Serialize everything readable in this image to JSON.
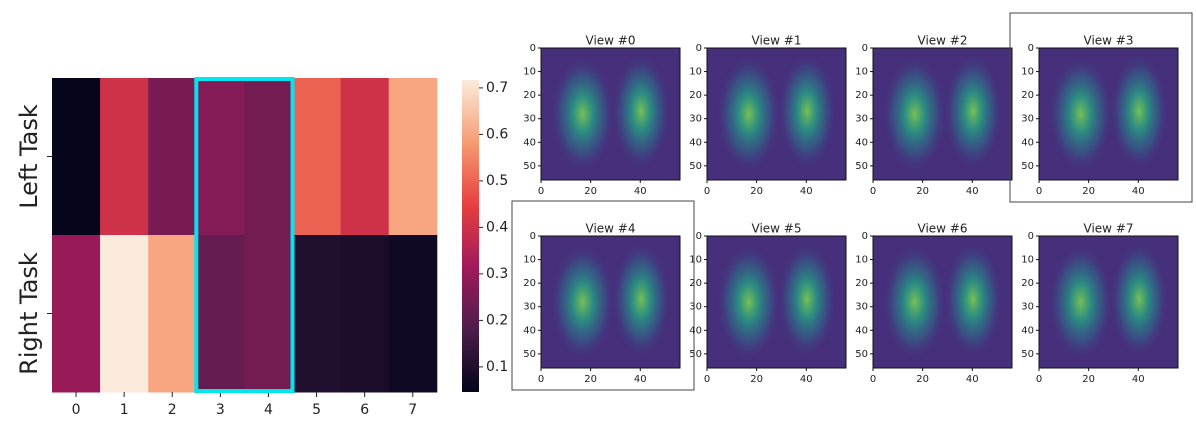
{
  "chart_data": [
    {
      "type": "heatmap",
      "x": [
        "0",
        "1",
        "2",
        "3",
        "4",
        "5",
        "6",
        "7"
      ],
      "y": [
        "Left Task",
        "Right Task"
      ],
      "values": [
        [
          0.05,
          0.4,
          0.25,
          0.27,
          0.24,
          0.5,
          0.4,
          0.6
        ],
        [
          0.3,
          0.72,
          0.6,
          0.22,
          0.24,
          0.1,
          0.09,
          0.07
        ]
      ],
      "colormap": "rocket",
      "clim": [
        0.046,
        0.717
      ],
      "cticks": [
        0.1,
        0.2,
        0.3,
        0.4,
        0.5,
        0.6,
        0.7
      ],
      "highlight_color": "#00e5ee",
      "highlight_columns": [
        3,
        4
      ]
    },
    {
      "type": "image_grid",
      "colormap": "viridis",
      "panels": [
        {
          "title": "View #0",
          "highlighted": false
        },
        {
          "title": "View #1",
          "highlighted": false
        },
        {
          "title": "View #2",
          "highlighted": false
        },
        {
          "title": "View #3",
          "highlighted": true
        },
        {
          "title": "View #4",
          "highlighted": true
        },
        {
          "title": "View #5",
          "highlighted": false
        },
        {
          "title": "View #6",
          "highlighted": false
        },
        {
          "title": "View #7",
          "highlighted": false
        }
      ],
      "xlim": [
        0,
        56
      ],
      "xticks": [
        0,
        20,
        40
      ],
      "ylim": [
        56,
        0
      ],
      "yticks": [
        0,
        10,
        20,
        30,
        40,
        50
      ]
    }
  ]
}
